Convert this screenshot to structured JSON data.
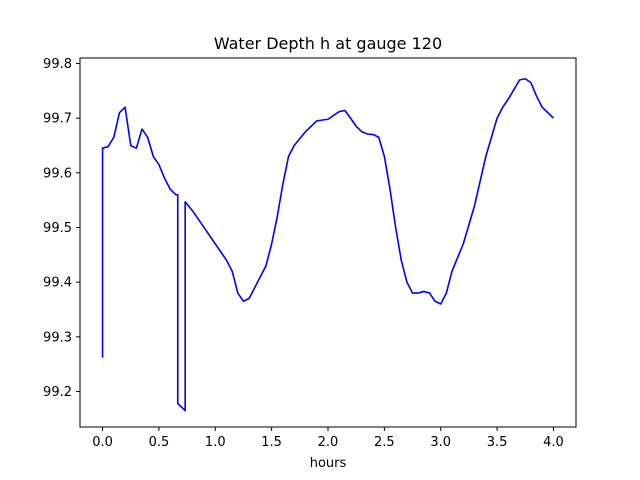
{
  "chart_data": {
    "type": "line",
    "title": "Water Depth h at gauge 120",
    "xlabel": "hours",
    "ylabel": "",
    "xlim": [
      -0.2,
      4.2
    ],
    "ylim": [
      99.135,
      99.81
    ],
    "grid": false,
    "xticks": [
      0.0,
      0.5,
      1.0,
      1.5,
      2.0,
      2.5,
      3.0,
      3.5,
      4.0
    ],
    "xtick_labels": [
      "0.0",
      "0.5",
      "1.0",
      "1.5",
      "2.0",
      "2.5",
      "3.0",
      "3.5",
      "4.0"
    ],
    "yticks": [
      99.2,
      99.3,
      99.4,
      99.5,
      99.6,
      99.7,
      99.8
    ],
    "ytick_labels": [
      "99.2",
      "99.3",
      "99.4",
      "99.5",
      "99.6",
      "99.7",
      "99.8"
    ],
    "series": [
      {
        "color": "#0000ff",
        "x": [
          0.0,
          0.0,
          0.05,
          0.1,
          0.15,
          0.2,
          0.25,
          0.3,
          0.35,
          0.4,
          0.45,
          0.5,
          0.55,
          0.6,
          0.65,
          0.667,
          0.667,
          0.733,
          0.733,
          0.8,
          0.9,
          1.0,
          1.1,
          1.15,
          1.2,
          1.25,
          1.3,
          1.35,
          1.4,
          1.45,
          1.5,
          1.55,
          1.6,
          1.65,
          1.7,
          1.8,
          1.9,
          2.0,
          2.1,
          2.15,
          2.2,
          2.25,
          2.3,
          2.35,
          2.4,
          2.45,
          2.5,
          2.55,
          2.6,
          2.65,
          2.7,
          2.75,
          2.8,
          2.85,
          2.9,
          2.95,
          3.0,
          3.05,
          3.1,
          3.2,
          3.3,
          3.4,
          3.5,
          3.55,
          3.6,
          3.7,
          3.75,
          3.8,
          3.85,
          3.9,
          3.95,
          4.0
        ],
        "y": [
          99.262,
          99.645,
          99.648,
          99.665,
          99.71,
          99.72,
          99.65,
          99.645,
          99.68,
          99.665,
          99.63,
          99.615,
          99.59,
          99.57,
          99.56,
          99.56,
          99.178,
          99.165,
          99.547,
          99.53,
          99.5,
          99.47,
          99.44,
          99.42,
          99.38,
          99.365,
          99.37,
          99.39,
          99.41,
          99.43,
          99.47,
          99.52,
          99.58,
          99.63,
          99.65,
          99.675,
          99.695,
          99.698,
          99.712,
          99.714,
          99.7,
          99.685,
          99.675,
          99.671,
          99.67,
          99.665,
          99.63,
          99.57,
          99.5,
          99.44,
          99.4,
          99.38,
          99.38,
          99.383,
          99.38,
          99.365,
          99.36,
          99.38,
          99.42,
          99.47,
          99.54,
          99.63,
          99.7,
          99.72,
          99.735,
          99.77,
          99.772,
          99.765,
          99.74,
          99.72,
          99.71,
          99.7
        ]
      }
    ]
  }
}
